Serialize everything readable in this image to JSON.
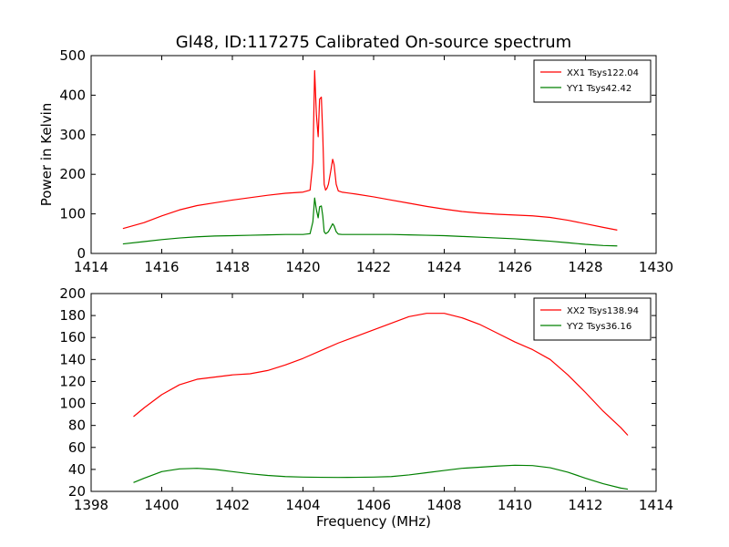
{
  "figure": {
    "title": "Gl48, ID:117275 Calibrated On-source spectrum"
  },
  "chart_data": [
    {
      "type": "line",
      "title": "Gl48, ID:117275 Calibrated On-source spectrum",
      "xlabel": "",
      "ylabel": "Power in Kelvin",
      "xlim": [
        1414,
        1430
      ],
      "ylim": [
        0,
        500
      ],
      "xticks": [
        "1414",
        "1416",
        "1418",
        "1420",
        "1422",
        "1424",
        "1426",
        "1428",
        "1430"
      ],
      "yticks": [
        "0",
        "100",
        "200",
        "300",
        "400",
        "500"
      ],
      "legend_position": "top-right",
      "grid": false,
      "series": [
        {
          "name": "XX1 Tsys122.04",
          "color": "#ff0000",
          "x": [
            1414.9,
            1415.5,
            1416.0,
            1416.5,
            1417.0,
            1417.5,
            1418.0,
            1418.5,
            1419.0,
            1419.5,
            1420.0,
            1420.2,
            1420.28,
            1420.33,
            1420.38,
            1420.43,
            1420.47,
            1420.52,
            1420.56,
            1420.6,
            1420.64,
            1420.68,
            1420.72,
            1420.78,
            1420.84,
            1420.88,
            1420.94,
            1421.0,
            1421.1,
            1421.5,
            1422.0,
            1422.5,
            1423.0,
            1423.5,
            1424.0,
            1424.5,
            1425.0,
            1425.5,
            1426.0,
            1426.5,
            1427.0,
            1427.5,
            1428.0,
            1428.5,
            1428.9
          ],
          "values": [
            63,
            78,
            95,
            110,
            121,
            128,
            135,
            141,
            147,
            152,
            155,
            160,
            230,
            462,
            350,
            295,
            390,
            395,
            300,
            175,
            160,
            165,
            175,
            205,
            238,
            225,
            175,
            158,
            155,
            150,
            143,
            135,
            127,
            119,
            112,
            106,
            102,
            99,
            97,
            95,
            91,
            84,
            75,
            66,
            59
          ]
        },
        {
          "name": "YY1 Tsys42.42",
          "color": "#008000",
          "x": [
            1414.9,
            1415.5,
            1416.0,
            1416.5,
            1417.0,
            1417.5,
            1418.0,
            1418.5,
            1419.0,
            1419.5,
            1420.0,
            1420.2,
            1420.28,
            1420.33,
            1420.38,
            1420.43,
            1420.47,
            1420.52,
            1420.56,
            1420.6,
            1420.64,
            1420.68,
            1420.72,
            1420.78,
            1420.84,
            1420.88,
            1420.94,
            1421.0,
            1421.1,
            1421.5,
            1422.0,
            1422.5,
            1423.0,
            1423.5,
            1424.0,
            1424.5,
            1425.0,
            1425.5,
            1426.0,
            1426.5,
            1427.0,
            1427.5,
            1428.0,
            1428.5,
            1428.9
          ],
          "values": [
            24,
            30,
            35,
            39,
            42,
            44,
            45,
            46,
            47,
            48,
            48,
            50,
            80,
            140,
            110,
            90,
            118,
            120,
            95,
            55,
            50,
            52,
            55,
            65,
            75,
            70,
            55,
            49,
            48,
            48,
            48,
            48,
            47,
            46,
            45,
            43,
            41,
            39,
            37,
            34,
            31,
            27,
            23,
            20,
            19
          ]
        }
      ]
    },
    {
      "type": "line",
      "title": "",
      "xlabel": "Frequency (MHz)",
      "ylabel": "",
      "xlim": [
        1398,
        1414
      ],
      "ylim": [
        20,
        200
      ],
      "xticks": [
        "1398",
        "1400",
        "1402",
        "1404",
        "1406",
        "1408",
        "1410",
        "1412",
        "1414"
      ],
      "yticks": [
        "20",
        "40",
        "60",
        "80",
        "100",
        "120",
        "140",
        "160",
        "180",
        "200"
      ],
      "legend_position": "top-right",
      "grid": false,
      "series": [
        {
          "name": "XX2 Tsys138.94",
          "color": "#ff0000",
          "x": [
            1399.2,
            1399.5,
            1400.0,
            1400.5,
            1401.0,
            1401.5,
            1402.0,
            1402.5,
            1403.0,
            1403.5,
            1404.0,
            1404.5,
            1405.0,
            1405.5,
            1406.0,
            1406.5,
            1407.0,
            1407.5,
            1408.0,
            1408.5,
            1409.0,
            1409.5,
            1410.0,
            1410.5,
            1411.0,
            1411.5,
            1412.0,
            1412.5,
            1413.0,
            1413.2
          ],
          "values": [
            88,
            96,
            108,
            117,
            122,
            124,
            126,
            127,
            130,
            135,
            141,
            148,
            155,
            161,
            167,
            173,
            179,
            182,
            182,
            178,
            172,
            164,
            156,
            149,
            140,
            126,
            110,
            93,
            78,
            71
          ]
        },
        {
          "name": "YY2 Tsys36.16",
          "color": "#008000",
          "x": [
            1399.2,
            1399.5,
            1400.0,
            1400.5,
            1401.0,
            1401.5,
            1402.0,
            1402.5,
            1403.0,
            1403.5,
            1404.0,
            1404.5,
            1405.0,
            1405.5,
            1406.0,
            1406.5,
            1407.0,
            1407.5,
            1408.0,
            1408.5,
            1409.0,
            1409.5,
            1410.0,
            1410.5,
            1411.0,
            1411.5,
            1412.0,
            1412.5,
            1413.0,
            1413.2
          ],
          "values": [
            28,
            32,
            38,
            40.5,
            41,
            40,
            38,
            36,
            34.5,
            33.5,
            33,
            32.8,
            32.7,
            32.8,
            33,
            33.5,
            35,
            37,
            39,
            41,
            42,
            43,
            43.8,
            43.5,
            41.5,
            37.5,
            32,
            27,
            23,
            22
          ]
        }
      ]
    }
  ]
}
